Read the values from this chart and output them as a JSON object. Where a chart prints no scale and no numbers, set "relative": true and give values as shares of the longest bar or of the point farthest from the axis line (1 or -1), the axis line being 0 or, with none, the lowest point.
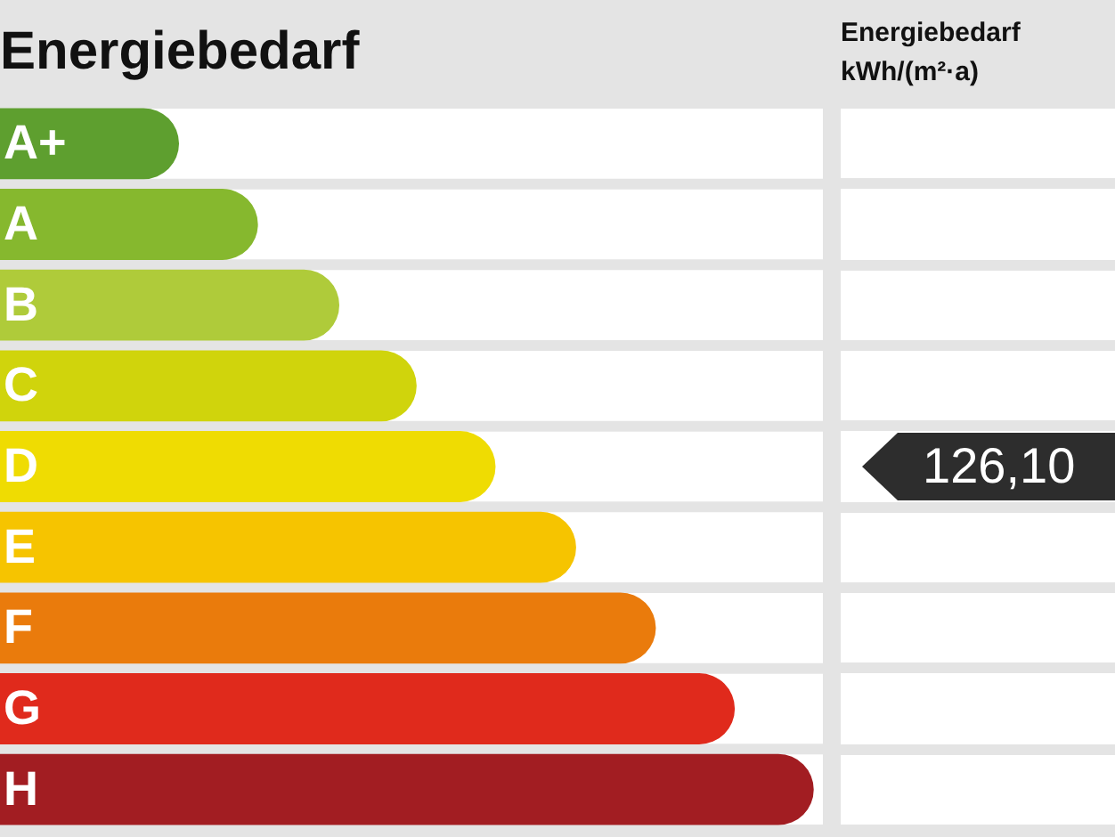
{
  "chart_data": {
    "type": "bar",
    "orientation": "horizontal",
    "relative": true,
    "title": "Energiebedarf",
    "categories": [
      "A+",
      "A",
      "B",
      "C",
      "D",
      "E",
      "F",
      "G",
      "H"
    ],
    "values": [
      0.22,
      0.317,
      0.417,
      0.512,
      0.609,
      0.708,
      0.806,
      0.903,
      1
    ],
    "colors": [
      "#5e9f2f",
      "#86b82e",
      "#afcb3a",
      "#d0d40c",
      "#efdc02",
      "#f6c400",
      "#ea7b0c",
      "#e02a1c",
      "#a21d22"
    ],
    "annotations": [
      "Energiebedarf kWh/(m²·a)",
      "126,10"
    ],
    "legend": false
  }
}
